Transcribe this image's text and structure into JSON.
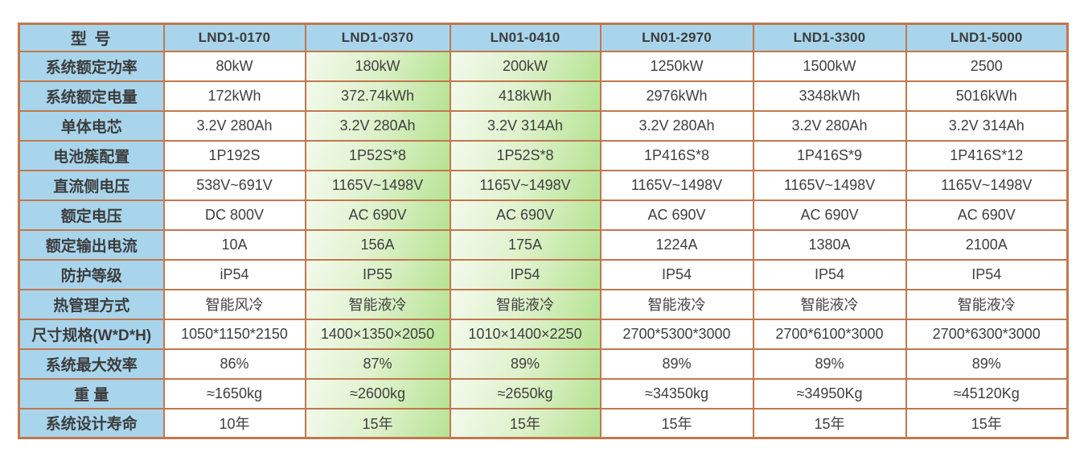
{
  "table": {
    "corner_label": "型 号",
    "models": [
      "LND1-0170",
      "LND1-0370",
      "LN01-0410",
      "LN01-2970",
      "LND1-3300",
      "LND1-5000"
    ],
    "highlighted_models": [
      "LND1-0370",
      "LN01-0410"
    ],
    "highlighted_column_indexes": [
      1,
      2
    ],
    "rows": [
      {
        "label": "系统额定功率",
        "values": [
          "80kW",
          "180kW",
          "200kW",
          "1250kW",
          "1500kW",
          "2500"
        ]
      },
      {
        "label": "系统额定电量",
        "values": [
          "172kWh",
          "372.74kWh",
          "418kWh",
          "2976kWh",
          "3348kWh",
          "5016kWh"
        ]
      },
      {
        "label": "单体电芯",
        "values": [
          "3.2V 280Ah",
          "3.2V 280Ah",
          "3.2V 314Ah",
          "3.2V 280Ah",
          "3.2V 280Ah",
          "3.2V 314Ah"
        ]
      },
      {
        "label": "电池簇配置",
        "values": [
          "1P192S",
          "1P52S*8",
          "1P52S*8",
          "1P416S*8",
          "1P416S*9",
          "1P416S*12"
        ]
      },
      {
        "label": "直流侧电压",
        "values": [
          "538V~691V",
          "1165V~1498V",
          "1165V~1498V",
          "1165V~1498V",
          "1165V~1498V",
          "1165V~1498V"
        ]
      },
      {
        "label": "额定电压",
        "values": [
          "DC 800V",
          "AC 690V",
          "AC 690V",
          "AC 690V",
          "AC 690V",
          "AC 690V"
        ]
      },
      {
        "label": "额定输出电流",
        "values": [
          "10A",
          "156A",
          "175A",
          "1224A",
          "1380A",
          "2100A"
        ]
      },
      {
        "label": "防护等级",
        "values": [
          "iP54",
          "IP55",
          "IP54",
          "IP54",
          "IP54",
          "IP54"
        ]
      },
      {
        "label": "热管理方式",
        "values": [
          "智能风冷",
          "智能液冷",
          "智能液冷",
          "智能液冷",
          "智能液冷",
          "智能液冷"
        ]
      },
      {
        "label": "尺寸规格(W*D*H)",
        "values": [
          "1050*1150*2150",
          "1400×1350×2050",
          "1010×1400×2250",
          "2700*5300*3000",
          "2700*6100*3000",
          "2700*6300*3000"
        ]
      },
      {
        "label": "系统最大效率",
        "values": [
          "86%",
          "87%",
          "89%",
          "89%",
          "89%",
          "89%"
        ]
      },
      {
        "label": "重 量",
        "values": [
          "≈1650kg",
          "≈2600kg",
          "≈2650kg",
          "≈34350kg",
          "≈34950Kg",
          "≈45120Kg"
        ]
      },
      {
        "label": "系统设计寿命",
        "values": [
          "10年",
          "15年",
          "15年",
          "15年",
          "15年",
          "15年"
        ]
      }
    ]
  },
  "colors": {
    "header_blue": "#a9d5ec",
    "border_orange": "#c0784d",
    "highlight_green": "#b6e393",
    "highlight_green_light": "#f3faec",
    "text": "#3f3f3f"
  }
}
